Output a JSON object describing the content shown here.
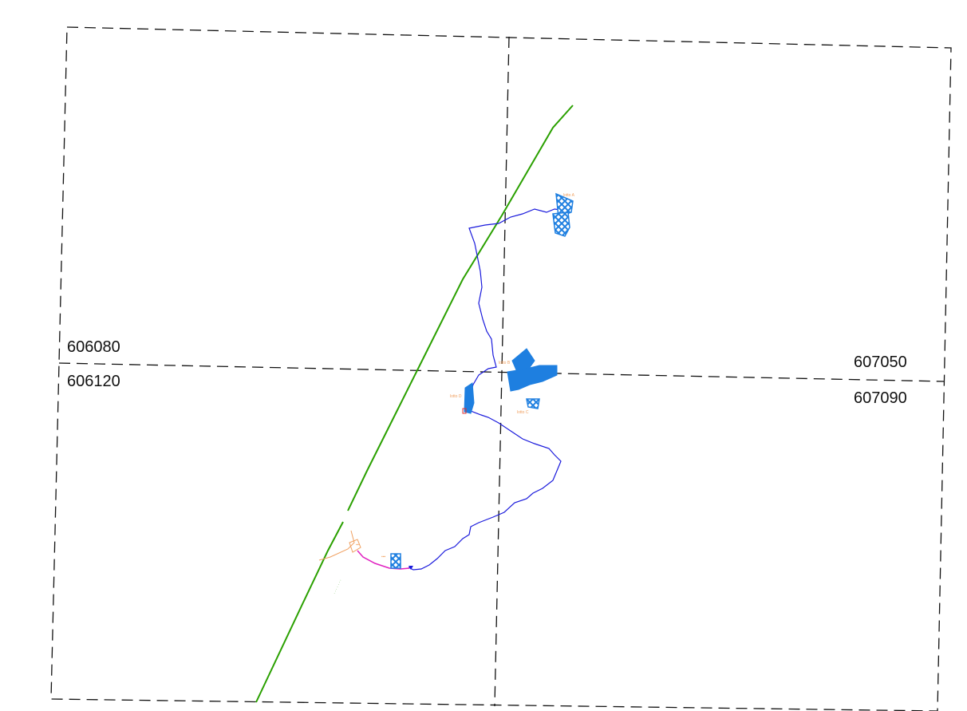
{
  "map": {
    "grid_labels": {
      "left_upper": "606080",
      "left_lower": "606120",
      "right_upper": "607050",
      "right_lower": "607090"
    },
    "feature_labels": {
      "lotto_a": "lotto A",
      "lotto_b": "lotto B",
      "lotto_c": "lotto C",
      "lotto_d": "lotto D"
    },
    "colors": {
      "frame": "#111111",
      "green_line": "#2aa000",
      "blue_path": "#1a1adc",
      "parcel_fill": "#1e7fe0",
      "orange_feature": "#f0a060",
      "magenta_feature": "#e020c0",
      "red_marker": "#e03030"
    }
  }
}
